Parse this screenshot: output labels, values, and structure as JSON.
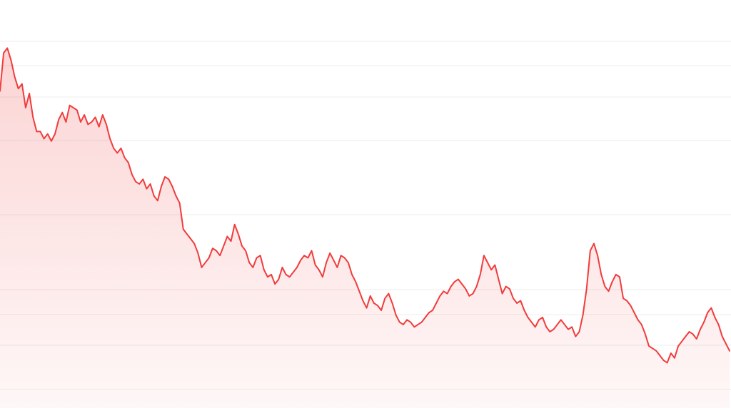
{
  "chart_data": {
    "type": "area",
    "title": "",
    "xlabel": "",
    "ylabel": "",
    "grid": true,
    "legend": "none",
    "line_color": "#f03c3c",
    "fill_color": "#f03c3c",
    "x": [
      0,
      1,
      2,
      3,
      4,
      5,
      6,
      7,
      8,
      9,
      10,
      11,
      12,
      13,
      14,
      15,
      16,
      17,
      18,
      19,
      20,
      21,
      22,
      23,
      24,
      25,
      26,
      27,
      28,
      29,
      30,
      31,
      32,
      33,
      34,
      35,
      36,
      37,
      38,
      39,
      40,
      41,
      42,
      43,
      44,
      45,
      46,
      47,
      48,
      49,
      50,
      51,
      52,
      53,
      54,
      55,
      56,
      57,
      58,
      59,
      60,
      61,
      62,
      63,
      64,
      65,
      66,
      67,
      68,
      69,
      70,
      71,
      72,
      73,
      74,
      75,
      76,
      77,
      78,
      79,
      80,
      81,
      82,
      83,
      84,
      85,
      86,
      87,
      88,
      89,
      90,
      91,
      92,
      93,
      94,
      95,
      96,
      97,
      98,
      99,
      100,
      101,
      102,
      103,
      104,
      105,
      106,
      107,
      108,
      109,
      110,
      111,
      112,
      113,
      114,
      115,
      116,
      117,
      118,
      119,
      120,
      121,
      122,
      123,
      124,
      125,
      126,
      127,
      128,
      129,
      130,
      131,
      132,
      133,
      134,
      135,
      136,
      137,
      138,
      139,
      140,
      141,
      142,
      143,
      144,
      145,
      146,
      147,
      148,
      149,
      150,
      151,
      152,
      153,
      154,
      155,
      156,
      157,
      158,
      159,
      160,
      161,
      162,
      163,
      164,
      165,
      166,
      167,
      168,
      169,
      170,
      171,
      172,
      173,
      174,
      175,
      176,
      177,
      178,
      179,
      180,
      181,
      182,
      183,
      184,
      185,
      186,
      187,
      188,
      189,
      190,
      191,
      192,
      193,
      194,
      195,
      196,
      197,
      198,
      199
    ],
    "values": [
      8.3,
      9.9,
      10.1,
      9.6,
      8.9,
      8.4,
      8.6,
      7.6,
      8.2,
      7.2,
      6.6,
      6.6,
      6.3,
      6.5,
      6.2,
      6.5,
      7.1,
      7.4,
      7.0,
      7.7,
      7.6,
      7.5,
      7.0,
      7.3,
      6.9,
      7.0,
      7.2,
      6.8,
      7.3,
      6.9,
      6.3,
      5.9,
      5.7,
      5.9,
      5.5,
      5.3,
      4.8,
      4.5,
      4.4,
      4.6,
      4.2,
      4.4,
      3.9,
      3.7,
      4.3,
      4.7,
      4.6,
      4.3,
      3.9,
      3.6,
      2.5,
      2.3,
      2.1,
      1.9,
      1.5,
      0.9,
      1.1,
      1.3,
      1.7,
      1.6,
      1.4,
      1.8,
      2.2,
      2.0,
      2.7,
      2.3,
      1.8,
      1.6,
      1.1,
      0.9,
      1.3,
      1.4,
      0.8,
      0.5,
      0.6,
      0.2,
      0.4,
      0.9,
      0.6,
      0.5,
      0.7,
      0.9,
      1.2,
      1.4,
      1.3,
      1.6,
      1.0,
      0.8,
      0.5,
      1.1,
      1.5,
      1.2,
      0.9,
      1.4,
      1.3,
      1.1,
      0.6,
      0.3,
      -0.1,
      -0.5,
      -0.8,
      -0.3,
      -0.6,
      -0.7,
      -0.9,
      -0.4,
      -0.2,
      -0.6,
      -1.1,
      -1.4,
      -1.5,
      -1.3,
      -1.4,
      -1.6,
      -1.5,
      -1.4,
      -1.2,
      -1.0,
      -0.9,
      -0.6,
      -0.3,
      -0.1,
      -0.2,
      0.1,
      0.3,
      0.4,
      0.2,
      0.0,
      -0.3,
      -0.2,
      0.1,
      0.6,
      1.4,
      1.1,
      0.8,
      1.0,
      0.4,
      -0.2,
      0.1,
      0.0,
      -0.4,
      -0.6,
      -0.5,
      -0.9,
      -1.2,
      -1.4,
      -1.6,
      -1.3,
      -1.2,
      -1.6,
      -1.8,
      -1.7,
      -1.5,
      -1.3,
      -1.5,
      -1.7,
      -1.6,
      -2.0,
      -1.8,
      -1.1,
      0.0,
      1.6,
      1.9,
      1.4,
      0.6,
      0.1,
      -0.1,
      0.3,
      0.6,
      0.5,
      -0.4,
      -0.5,
      -0.7,
      -1.0,
      -1.3,
      -1.5,
      -1.9,
      -2.4,
      -2.5,
      -2.6,
      -2.8,
      -3.0,
      -3.1,
      -2.7,
      -2.9,
      -2.4,
      -2.2,
      -2.0,
      -1.8,
      -1.9,
      -2.1,
      -1.7,
      -1.4,
      -1.0,
      -0.8,
      -1.2,
      -1.5,
      -2.0,
      -2.3,
      -2.6
    ],
    "ylim": [
      -5,
      12
    ]
  }
}
